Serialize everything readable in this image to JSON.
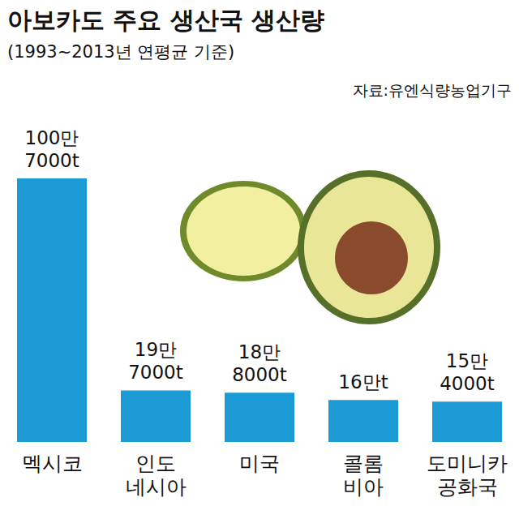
{
  "chart_data": {
    "type": "bar",
    "title": "아보카도 주요 생산국 생산량",
    "subtitle": "(1993~2013년 연평균 기준)",
    "annotation": "자료:유엔식량농업기구",
    "categories": [
      "멕시코",
      "인도\n네시아",
      "미국",
      "콜롬\n비아",
      "도미니카\n공화국"
    ],
    "values": [
      1007000,
      197000,
      188000,
      160000,
      154000
    ],
    "value_labels": [
      "100만\n7000t",
      "19만\n7000t",
      "18만\n8000t",
      "16만t",
      "15만\n4000t"
    ],
    "color": "#1b9ad6",
    "ylim": [
      0,
      1007000
    ],
    "grid": false,
    "data_labels": true,
    "tick_labels": "x"
  }
}
